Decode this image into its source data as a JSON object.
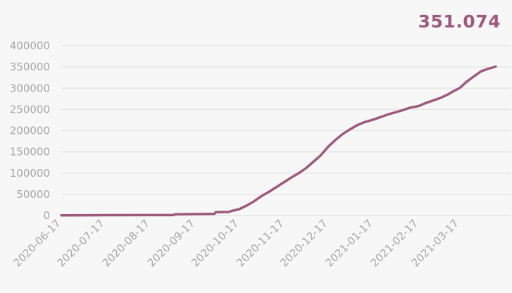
{
  "headline": {
    "value": "351.074"
  },
  "colors": {
    "line": "#9e5a7e",
    "grid": "#e3e3e3",
    "tick": "#a6a6a6",
    "background": "#f7f7f7"
  },
  "chart_data": {
    "type": "line",
    "title": "",
    "xlabel": "",
    "ylabel": "",
    "grid": true,
    "x_tick_labels": [
      "2020-06-17",
      "2020-07-17",
      "2020-08-17",
      "2020-09-17",
      "2020-10-17",
      "2020-11-17",
      "2020-12-17",
      "2021-01-17",
      "2021-02-17",
      "2021-03-17"
    ],
    "y_ticks": [
      0,
      50000,
      100000,
      150000,
      200000,
      250000,
      300000,
      350000,
      400000
    ],
    "xlim": [
      "2020-06-17",
      "2021-04-12"
    ],
    "ylim": [
      0,
      400000
    ],
    "series": [
      {
        "x": [
          "2020-06-17",
          "2020-07-17",
          "2020-08-17",
          "2020-09-02",
          "2020-09-03",
          "2020-09-17",
          "2020-09-30",
          "2020-10-01",
          "2020-10-10",
          "2020-10-12",
          "2020-10-17",
          "2020-10-22",
          "2020-10-27",
          "2020-11-01",
          "2020-11-07",
          "2020-11-12",
          "2020-11-17",
          "2020-11-22",
          "2020-11-27",
          "2020-12-02",
          "2020-12-07",
          "2020-12-12",
          "2020-12-17",
          "2020-12-22",
          "2020-12-27",
          "2021-01-01",
          "2021-01-06",
          "2021-01-11",
          "2021-01-17",
          "2021-01-22",
          "2021-01-27",
          "2021-02-01",
          "2021-02-06",
          "2021-02-11",
          "2021-02-17",
          "2021-02-22",
          "2021-02-27",
          "2021-03-04",
          "2021-03-09",
          "2021-03-14",
          "2021-03-17",
          "2021-03-22",
          "2021-03-27",
          "2021-04-01",
          "2021-04-06",
          "2021-04-11"
        ],
        "values": [
          500,
          800,
          1000,
          1000,
          3000,
          3500,
          4000,
          8000,
          8500,
          11000,
          15000,
          23000,
          33000,
          45000,
          57000,
          68000,
          79000,
          90000,
          100000,
          112000,
          127000,
          142000,
          162000,
          178000,
          192000,
          203000,
          213000,
          220000,
          226000,
          232000,
          238000,
          243000,
          248000,
          254000,
          258000,
          265000,
          271000,
          277000,
          285000,
          295000,
          300000,
          315000,
          328000,
          340000,
          346000,
          351074
        ]
      }
    ]
  }
}
